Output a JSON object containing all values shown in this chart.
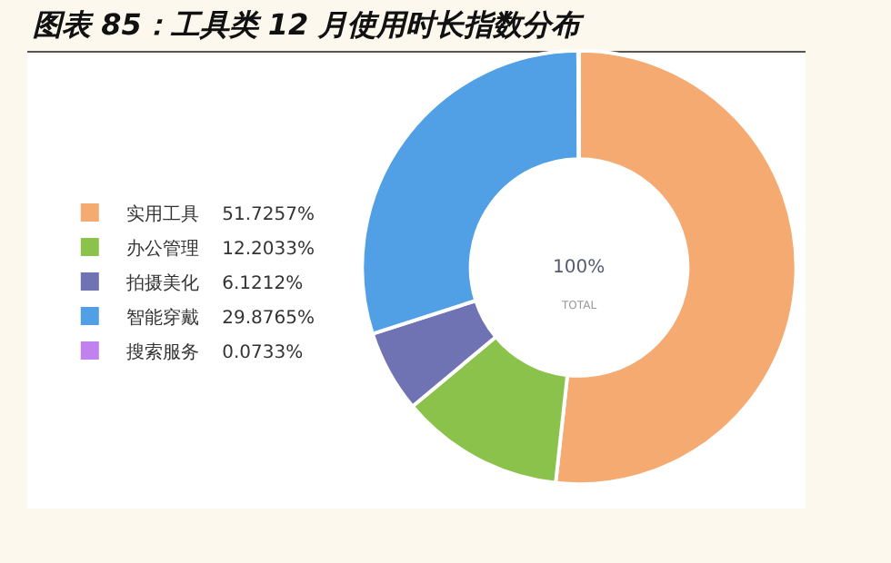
{
  "chart_data": {
    "type": "donut",
    "title": "图表 85：工具类 12 月使用时长指数分布",
    "categories": [
      "实用工具",
      "办公管理",
      "拍摄美化",
      "智能穿戴",
      "搜索服务"
    ],
    "values": [
      51.7257,
      12.2033,
      6.1212,
      29.8765,
      0.0733
    ],
    "value_labels": [
      "51.7257%",
      "12.2033%",
      "6.1212%",
      "29.8765%",
      "0.0733%"
    ],
    "colors": [
      "#f5aa72",
      "#8bc24c",
      "#7073b3",
      "#519fe5",
      "#c181ef"
    ],
    "legend": "left",
    "annotations": [
      "100%",
      "TOTAL"
    ]
  }
}
